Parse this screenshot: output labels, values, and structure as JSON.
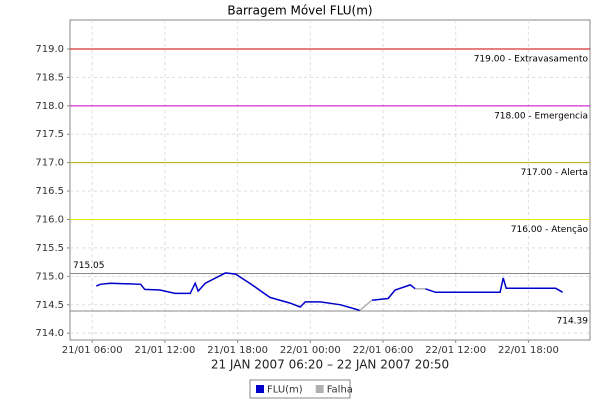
{
  "chart_data": {
    "type": "line",
    "title": "Barragem Móvel FLU(m)",
    "subtitle": "21 JAN 2007 06:20 – 22 JAN 2007 20:50",
    "xlim": [
      "21/01 04:10",
      "22/01 23:05"
    ],
    "xticks": [
      "21/01 06:00",
      "21/01 12:00",
      "21/01 18:00",
      "22/01 00:00",
      "22/01 06:00",
      "22/01 12:00",
      "22/01 18:00"
    ],
    "ylim": [
      713.88,
      719.51
    ],
    "yticks": [
      {
        "value": 714,
        "label": "714.0"
      },
      714.5,
      {
        "value": 715,
        "label": "715.0"
      },
      715.5,
      {
        "value": 716,
        "label": "716.0"
      },
      716.5,
      {
        "value": 717,
        "label": "717.0"
      },
      717.5,
      {
        "value": 718,
        "label": "718.0"
      },
      718.5,
      {
        "value": 719,
        "label": "719.0"
      }
    ],
    "grid": true,
    "annotations": [
      {
        "value": 719,
        "label": "719.00 - Extravasamento",
        "color": "#cc0000",
        "align": "right"
      },
      {
        "value": 718,
        "label": "718.00 - Emergencia",
        "color": "#cc00cc",
        "align": "right"
      },
      {
        "value": 717,
        "label": "717.00 - Alerta",
        "color": "#b0b000",
        "align": "right"
      },
      {
        "value": 716,
        "label": "716.00 - Atenção",
        "color": "#e8e800",
        "align": "right"
      },
      {
        "value": 715.05,
        "label": "715.05",
        "color": "#888888",
        "align": "left"
      },
      {
        "value": 714.39,
        "label": "714.39",
        "color": "#888888",
        "align": "right"
      }
    ],
    "series": [
      {
        "name": "FLU(m)",
        "color": "#0000cc",
        "x": [
          "21/01 06:20",
          "21/01 06:40",
          "21/01 07:30",
          "21/01 10:00",
          "21/01 10:20",
          "21/01 11:35",
          "21/01 12:50",
          "21/01 14:05",
          "21/01 14:30",
          "21/01 14:45",
          "21/01 15:20",
          "21/01 17:00",
          "21/01 17:50",
          "21/01 19:00",
          "21/01 20:40",
          "21/01 22:20",
          "21/01 23:10",
          "21/01 23:35",
          "22/01 00:50",
          "22/01 02:30",
          "22/01 04:05",
          "22/01 04:35",
          "22/01 05:05",
          "22/01 06:25",
          "22/01 07:00",
          "22/01 08:15",
          "22/01 08:40",
          "22/01 09:05",
          "22/01 09:30",
          "22/01 10:20",
          "22/01 15:40",
          "22/01 15:55",
          "22/01 16:10",
          "22/01 20:15",
          "22/01 20:50"
        ],
        "values": [
          714.83,
          714.86,
          714.88,
          714.86,
          714.77,
          714.76,
          714.7,
          714.7,
          714.88,
          714.74,
          714.88,
          715.06,
          715.04,
          714.88,
          714.63,
          714.53,
          714.46,
          714.55,
          714.55,
          714.5,
          714.4,
          null,
          714.58,
          714.61,
          714.76,
          714.85,
          714.78,
          null,
          714.78,
          714.72,
          714.72,
          714.97,
          714.79,
          714.79,
          714.72
        ]
      },
      {
        "name": "Falha",
        "color": "#b0b0b0",
        "x": [
          "22/01 04:05",
          "22/01 05:05",
          "22/01 07:00",
          "22/01 08:40",
          "22/01 09:30"
        ],
        "values": [
          714.4,
          714.58,
          null,
          714.78,
          714.78
        ]
      }
    ]
  }
}
